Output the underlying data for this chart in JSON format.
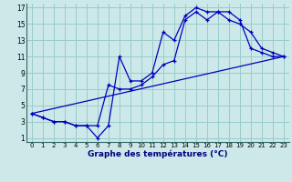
{
  "xlabel": "Graphe des températures (°C)",
  "background_color": "#cce8e8",
  "grid_color": "#99cccc",
  "line_color": "#0000bb",
  "x_ticks": [
    0,
    1,
    2,
    3,
    4,
    5,
    6,
    7,
    8,
    9,
    10,
    11,
    12,
    13,
    14,
    15,
    16,
    17,
    18,
    19,
    20,
    21,
    22,
    23
  ],
  "y_ticks": [
    1,
    3,
    5,
    7,
    9,
    11,
    13,
    15,
    17
  ],
  "xlim": [
    -0.5,
    23.5
  ],
  "ylim": [
    0.5,
    17.5
  ],
  "series1_x": [
    0,
    1,
    2,
    3,
    4,
    5,
    6,
    7,
    8,
    9,
    10,
    11,
    12,
    13,
    14,
    15,
    16,
    17,
    18,
    19,
    20,
    21,
    22,
    23
  ],
  "series1_y": [
    4,
    3.5,
    3,
    3,
    2.5,
    2.5,
    1,
    2.5,
    11,
    8,
    8,
    9,
    14,
    13,
    16,
    17,
    16.5,
    16.5,
    16.5,
    15.5,
    12,
    11.5,
    11,
    11
  ],
  "series2_x": [
    0,
    1,
    2,
    3,
    4,
    5,
    6,
    7,
    8,
    9,
    10,
    11,
    12,
    13,
    14,
    15,
    16,
    17,
    18,
    19,
    20,
    21,
    22,
    23
  ],
  "series2_y": [
    4,
    3.5,
    3,
    3,
    2.5,
    2.5,
    2.5,
    7.5,
    7,
    7,
    7.5,
    8.5,
    10,
    10.5,
    15.5,
    16.5,
    15.5,
    16.5,
    15.5,
    15,
    14,
    12,
    11.5,
    11
  ],
  "series3_x": [
    0,
    23
  ],
  "series3_y": [
    4,
    11
  ]
}
